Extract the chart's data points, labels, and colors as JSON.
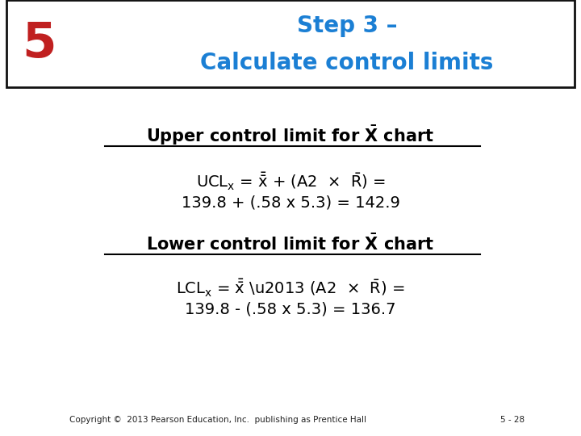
{
  "title_line1": "Step 3 –",
  "title_line2": "Calculate control limits",
  "step_number": "5",
  "title_color": "#1B7FD4",
  "step_color": "#C02020",
  "bg_color": "#FFFFFF",
  "header_border_color": "#111111",
  "upper_formula_line2": "139.8 + (.58 x 5.3) = 142.9",
  "lower_formula_line2": "139.8 - (.58 x 5.3) = 136.7",
  "copyright": "Copyright ©  2013 Pearson Education, Inc.  publishing as Prentice Hall",
  "page": "5 - 28",
  "formula_color": "#000000",
  "heading_color": "#000000"
}
